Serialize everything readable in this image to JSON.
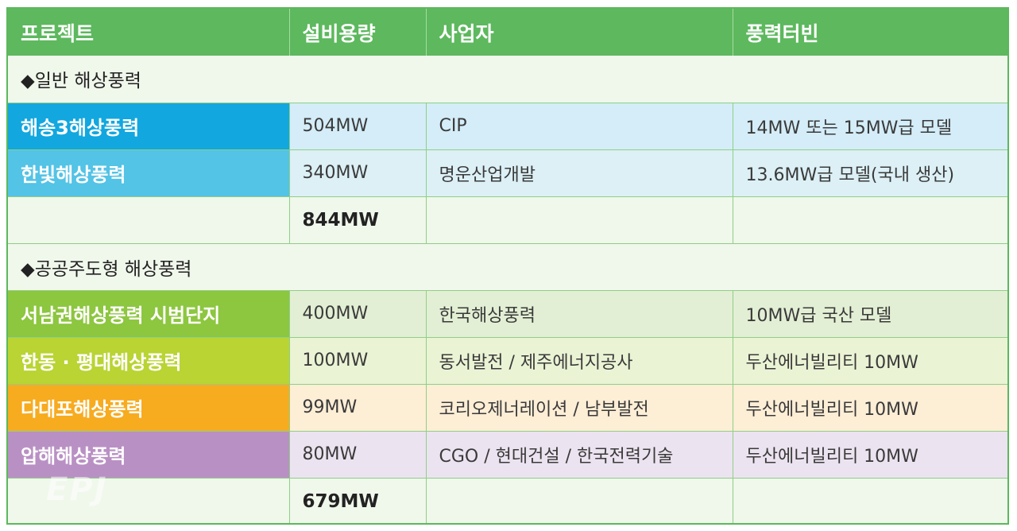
{
  "header": {
    "project": "프로젝트",
    "capacity": "설비용량",
    "operator": "사업자",
    "turbine": "풍력터빈"
  },
  "sections": [
    {
      "title": "◆일반 해상풍력",
      "rows": [
        {
          "name": "해송3해상풍력",
          "capacity": "504MW",
          "operator": "CIP",
          "turbine": "14MW 또는 15MW급 모델"
        },
        {
          "name": "한빛해상풍력",
          "capacity": "340MW",
          "operator": "명운산업개발",
          "turbine": "13.6MW급 모델(국내 생산)"
        }
      ],
      "total": "844MW"
    },
    {
      "title": "◆공공주도형 해상풍력",
      "rows": [
        {
          "name": "서남권해상풍력 시범단지",
          "capacity": "400MW",
          "operator": "한국해상풍력",
          "turbine": "10MW급 국산 모델"
        },
        {
          "name": "한동 · 평대해상풍력",
          "capacity": "100MW",
          "operator": "동서발전 / 제주에너지공사",
          "turbine": "두산에너빌리티 10MW"
        },
        {
          "name": "다대포해상풍력",
          "capacity": "99MW",
          "operator": "코리오제너레이션 / 남부발전",
          "turbine": "두산에너빌리티 10MW"
        },
        {
          "name": "압해해상풍력",
          "capacity": "80MW",
          "operator": "CGO / 현대건설 / 한국전력기술",
          "turbine": "두산에너빌리티 10MW"
        }
      ],
      "total": "679MW"
    }
  ],
  "watermark": "EPJ",
  "colors": {
    "header": "#5db85e",
    "border": "#5cb85c",
    "row_blue_1": "#12a7df",
    "row_blue_2": "#53c3e6",
    "row_green_1": "#8dc63f",
    "row_green_2": "#b9d433",
    "row_orange": "#f7ab1f",
    "row_purple": "#b990c4"
  }
}
